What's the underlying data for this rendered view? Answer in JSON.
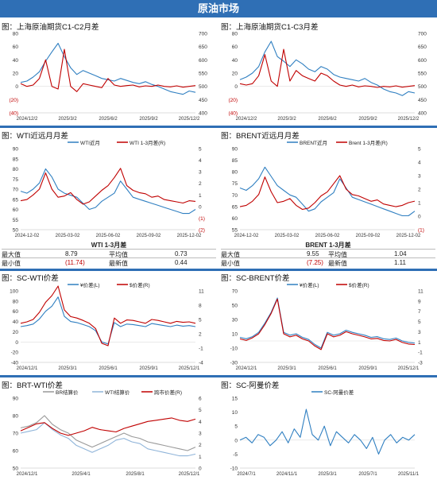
{
  "banner": "原油市场",
  "panels": [
    {
      "title": "图：上海原油期货C1-C2月差",
      "legend": [],
      "x_ticks": [
        "2024/12/2",
        "2025/3/2",
        "2025/6/2",
        "2025/9/2",
        "2025/12/2"
      ],
      "left_ticks": [
        "80",
        "60",
        "40",
        "20",
        "0",
        "(20)",
        "(40)"
      ],
      "right_ticks": [
        "700",
        "650",
        "600",
        "550",
        "500",
        "450",
        "400"
      ]
    },
    {
      "title": "图：上海原油期货C1-C3月差",
      "legend": [],
      "x_ticks": [
        "2024/12/2",
        "2025/3/2",
        "2025/6/2",
        "2025/9/2",
        "2025/12/2"
      ],
      "left_ticks": [
        "80",
        "60",
        "40",
        "20",
        "0",
        "(20)",
        "(40)"
      ],
      "right_ticks": [
        "700",
        "650",
        "600",
        "550",
        "500",
        "450",
        "400"
      ]
    },
    {
      "title": "图：WTI近远月月差",
      "legend": [
        "WTI近月",
        "WTI 1-3月差(R)"
      ],
      "x_ticks": [
        "2024-12-02",
        "2025-03-02",
        "2025-06-02",
        "2025-09-02",
        "2025-12-02"
      ],
      "left_ticks": [
        "90",
        "85",
        "80",
        "75",
        "70",
        "65",
        "60",
        "55",
        "50"
      ],
      "right_ticks": [
        "5",
        "4",
        "3",
        "2",
        "1",
        "0",
        "(1)",
        "(2)"
      ]
    },
    {
      "title": "图：BRENT近远月月差",
      "legend": [
        "BRENT近月",
        "Brent 1-3月差(R)"
      ],
      "x_ticks": [
        "2024-12-02",
        "2025-03-02",
        "2025-06-02",
        "2025-09-02",
        "2025-12-02"
      ],
      "left_ticks": [
        "90",
        "85",
        "80",
        "75",
        "70",
        "65",
        "60",
        "55"
      ],
      "right_ticks": [
        "5",
        "4",
        "3",
        "2",
        "1",
        "0",
        "(1)"
      ]
    },
    {
      "title": "图：SC-WTI价差",
      "legend": [
        "¥价差(L)",
        "$价差(R)"
      ],
      "x_ticks": [
        "2024/12/1",
        "2025/3/1",
        "2025/6/1",
        "2025/9/1",
        "2025/12/1"
      ],
      "left_ticks": [
        "100",
        "80",
        "60",
        "40",
        "20",
        "0",
        "-20",
        "-40"
      ],
      "right_ticks": [
        "11",
        "8",
        "5",
        "2",
        "-1",
        "-4"
      ]
    },
    {
      "title": "图：SC-BRENT价差",
      "legend": [
        "¥价差(L)",
        "$价差(R)"
      ],
      "x_ticks": [
        "2024/12/1",
        "2025/3/1",
        "2025/6/1",
        "2025/9/1",
        "2025/12/1"
      ],
      "left_ticks": [
        "70",
        "50",
        "30",
        "10",
        "-10",
        "-30"
      ],
      "right_ticks": [
        "11",
        "9",
        "7",
        "5",
        "3",
        "1",
        "-1",
        "-3"
      ]
    },
    {
      "title": "图：BRT-WTI价差",
      "legend": [
        "BR结算价",
        "WTI结算价",
        "跨市价差(R)"
      ],
      "x_ticks": [
        "2024/12/1",
        "2025/4/1",
        "2025/8/1",
        "2025/12/1"
      ],
      "left_ticks": [
        "90",
        "80",
        "70",
        "60",
        "50"
      ],
      "right_ticks": [
        "6",
        "5",
        "4",
        "3",
        "2",
        "1",
        "0"
      ]
    },
    {
      "title": "图：SC-阿曼价差",
      "legend": [
        "SC-阿曼价差"
      ],
      "x_ticks": [
        "2024/7/1",
        "2024/11/1",
        "2025/3/1",
        "2025/7/1",
        "2025/11/1"
      ],
      "left_ticks": [
        "15",
        "10",
        "5",
        "0",
        "-5",
        "-10"
      ],
      "right_ticks": []
    }
  ],
  "stats": [
    {
      "title": "WTI 1-3月差",
      "rows": [
        {
          "l1": "最大值",
          "v1": "8.79",
          "l2": "平均值",
          "v2": "0.73"
        },
        {
          "l1": "最小值",
          "v1": "(11.74)",
          "l2": "最新值",
          "v2": "0.44"
        }
      ]
    },
    {
      "title": "BRENT 1-3月差",
      "rows": [
        {
          "l1": "最大值",
          "v1": "9.55",
          "l2": "平均值",
          "v2": "1.04"
        },
        {
          "l1": "最小值",
          "v1": "(7.25)",
          "l2": "最新值",
          "v2": "1.11"
        }
      ]
    }
  ],
  "colors": {
    "blue": "#2f7fc1",
    "red": "#c00000",
    "gray": "#999999",
    "lightblue": "#8fb4d9",
    "banner": "#2f6fb5"
  },
  "chart_data": [
    {
      "type": "line",
      "title": "图：上海原油期货C1-C2月差",
      "series": [
        {
          "axis": "left",
          "color": "#2f7fc1",
          "values": [
            6,
            8,
            14,
            22,
            38,
            52,
            65,
            45,
            28,
            18,
            24,
            20,
            16,
            12,
            10,
            8,
            12,
            9,
            6,
            4,
            7,
            3,
            0,
            -4,
            -8,
            -10,
            -12,
            -7,
            -9
          ]
        },
        {
          "axis": "right",
          "color": "#c00000",
          "values": [
            510,
            500,
            505,
            530,
            600,
            500,
            490,
            640,
            500,
            480,
            510,
            505,
            500,
            495,
            530,
            505,
            500,
            503,
            505,
            498,
            502,
            500,
            505,
            500,
            498,
            502,
            497,
            500,
            503
          ]
        }
      ]
    },
    {
      "type": "line",
      "title": "图：上海原油期货C1-C3月差",
      "series": [
        {
          "axis": "left",
          "color": "#2f7fc1",
          "values": [
            10,
            14,
            20,
            30,
            52,
            68,
            45,
            38,
            30,
            40,
            34,
            26,
            22,
            30,
            26,
            18,
            14,
            12,
            10,
            8,
            12,
            6,
            2,
            -4,
            -8,
            -10,
            -14,
            -8,
            -10
          ]
        },
        {
          "axis": "right",
          "color": "#c00000",
          "values": [
            510,
            505,
            510,
            540,
            620,
            520,
            500,
            640,
            520,
            560,
            540,
            530,
            520,
            550,
            540,
            520,
            505,
            500,
            505,
            498,
            502,
            500,
            496,
            500,
            498,
            502,
            497,
            500,
            503
          ]
        }
      ]
    },
    {
      "type": "line",
      "title": "图：WTI近远月月差",
      "series": [
        {
          "axis": "left",
          "color": "#2f7fc1",
          "values": [
            69,
            68,
            70,
            73,
            80,
            76,
            70,
            68,
            67,
            66,
            63,
            60,
            61,
            64,
            66,
            68,
            74,
            70,
            66,
            65,
            64,
            63,
            62,
            61,
            60,
            59,
            58,
            58,
            60
          ]
        },
        {
          "axis": "right",
          "color": "#c00000",
          "values": [
            0.5,
            0.6,
            1.0,
            1.5,
            2.9,
            1.5,
            0.8,
            0.9,
            1.2,
            0.6,
            0.2,
            0.4,
            0.9,
            1.4,
            1.8,
            2.5,
            3.3,
            1.8,
            1.4,
            1.2,
            1.1,
            0.8,
            0.9,
            0.6,
            0.5,
            0.4,
            0.3,
            0.5,
            0.44
          ]
        }
      ]
    },
    {
      "type": "line",
      "title": "图：BRENT近远月月差",
      "series": [
        {
          "axis": "left",
          "color": "#2f7fc1",
          "values": [
            73,
            72,
            74,
            77,
            82,
            78,
            74,
            72,
            70,
            69,
            66,
            63,
            64,
            67,
            69,
            71,
            77,
            73,
            69,
            68,
            67,
            66,
            65,
            64,
            63,
            62,
            61,
            61,
            63
          ]
        },
        {
          "axis": "right",
          "color": "#c00000",
          "values": [
            0.7,
            0.8,
            1.1,
            1.6,
            2.9,
            1.8,
            1.0,
            1.1,
            1.3,
            0.8,
            0.5,
            0.6,
            1.0,
            1.5,
            1.8,
            2.4,
            3.0,
            2.0,
            1.6,
            1.5,
            1.3,
            1.1,
            1.2,
            0.9,
            0.8,
            0.7,
            0.8,
            1.0,
            1.11
          ]
        }
      ]
    },
    {
      "type": "line",
      "title": "图：SC-WTI价差",
      "series": [
        {
          "axis": "left",
          "color": "#2f7fc1",
          "values": [
            30,
            32,
            35,
            45,
            60,
            70,
            88,
            50,
            40,
            38,
            34,
            30,
            22,
            0,
            -4,
            38,
            30,
            35,
            34,
            32,
            30,
            36,
            34,
            32,
            30,
            33,
            31,
            32,
            30
          ]
        },
        {
          "axis": "right",
          "color": "#c00000",
          "values": [
            4.2,
            4.5,
            5.0,
            6.5,
            8.6,
            10,
            12,
            7,
            5.6,
            5.3,
            4.8,
            4.2,
            3.1,
            0,
            -0.5,
            5.3,
            4.2,
            4.9,
            4.8,
            4.5,
            4.2,
            5.0,
            4.8,
            4.5,
            4.2,
            4.6,
            4.4,
            4.5,
            4.2
          ]
        }
      ]
    },
    {
      "type": "line",
      "title": "图：SC-BRENT价差",
      "series": [
        {
          "axis": "left",
          "color": "#2f7fc1",
          "values": [
            5,
            3,
            6,
            12,
            25,
            40,
            60,
            12,
            8,
            10,
            5,
            2,
            -5,
            -10,
            12,
            8,
            10,
            15,
            12,
            10,
            8,
            5,
            6,
            3,
            2,
            4,
            0,
            -2,
            -3
          ]
        },
        {
          "axis": "right",
          "color": "#c00000",
          "values": [
            1.6,
            1.3,
            1.8,
            2.6,
            4.4,
            6.6,
            9.4,
            2.6,
            2.0,
            2.3,
            1.6,
            1.2,
            0.2,
            -0.5,
            2.6,
            2.0,
            2.3,
            3.0,
            2.6,
            2.3,
            2.0,
            1.6,
            1.7,
            1.3,
            1.2,
            1.5,
            0.9,
            0.6,
            0.5
          ]
        }
      ]
    },
    {
      "type": "line",
      "title": "图：BRT-WTI价差",
      "series": [
        {
          "axis": "left",
          "color": "#999999",
          "values": [
            73,
            74,
            76,
            80,
            75,
            72,
            70,
            66,
            64,
            62,
            64,
            66,
            68,
            70,
            68,
            67,
            65,
            64,
            63,
            62,
            61,
            60,
            62
          ]
        },
        {
          "axis": "left",
          "color": "#8fb4d9",
          "values": [
            70,
            71,
            72,
            76,
            72,
            69,
            67,
            63,
            61,
            59,
            61,
            63,
            66,
            67,
            65,
            64,
            61,
            60,
            59,
            58,
            57,
            57,
            58
          ]
        },
        {
          "axis": "right",
          "color": "#c00000",
          "values": [
            3.2,
            3.5,
            3.8,
            3.9,
            3.4,
            3.0,
            2.8,
            3.0,
            3.2,
            3.5,
            3.3,
            3.2,
            3.1,
            3.4,
            3.6,
            3.8,
            4.0,
            4.1,
            4.2,
            4.3,
            4.1,
            4.0,
            4.2
          ]
        }
      ]
    },
    {
      "type": "line",
      "title": "图：SC-阿曼价差",
      "series": [
        {
          "axis": "left",
          "color": "#2f7fc1",
          "values": [
            0,
            1,
            -1,
            2,
            1,
            -2,
            0,
            3,
            -1,
            4,
            1,
            11,
            2,
            0,
            5,
            -2,
            3,
            1,
            -1,
            2,
            0,
            -3,
            1,
            -5,
            0,
            2,
            -1,
            1,
            0,
            2
          ]
        }
      ]
    }
  ]
}
